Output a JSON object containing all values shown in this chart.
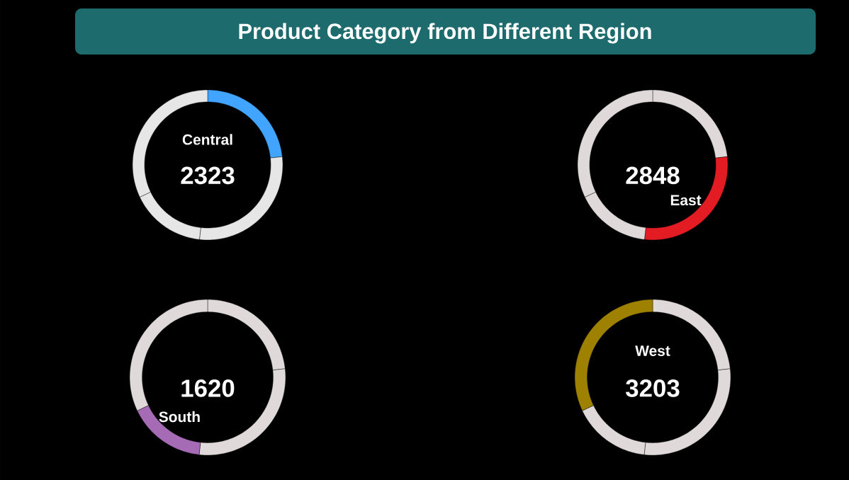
{
  "chart_data": [
    {
      "type": "donut",
      "title": "Product Category from Different Region",
      "categories": [
        "Central",
        null,
        null,
        null
      ],
      "values": [
        2323,
        2848,
        1620,
        3203
      ],
      "colors": [
        "#41a5ff",
        "#e6e6e6",
        "#e6e6e6",
        "#e6e6e6"
      ],
      "value_labels": [
        "2323",
        null,
        null,
        null
      ]
    },
    {
      "type": "donut",
      "categories": [
        null,
        "East",
        null,
        null
      ],
      "values": [
        2323,
        2848,
        1620,
        3203
      ],
      "colors": [
        "#e0d9d9",
        "#e31b23",
        "#e0d9d9",
        "#e0d9d9"
      ],
      "value_labels": [
        null,
        "2848",
        null,
        null
      ]
    },
    {
      "type": "donut",
      "categories": [
        null,
        null,
        "South",
        null
      ],
      "values": [
        2323,
        2848,
        1620,
        3203
      ],
      "colors": [
        "#e0d9d9",
        "#e0d9d9",
        "#a66bb5",
        "#e0d9d9"
      ],
      "value_labels": [
        null,
        null,
        "1620",
        null
      ]
    },
    {
      "type": "donut",
      "categories": [
        null,
        null,
        null,
        "West"
      ],
      "values": [
        2323,
        2848,
        1620,
        3203
      ],
      "colors": [
        "#e0d9d9",
        "#e0d9d9",
        "#e0d9d9",
        "#9e8100"
      ],
      "value_labels": [
        null,
        null,
        null,
        "3203"
      ]
    }
  ]
}
